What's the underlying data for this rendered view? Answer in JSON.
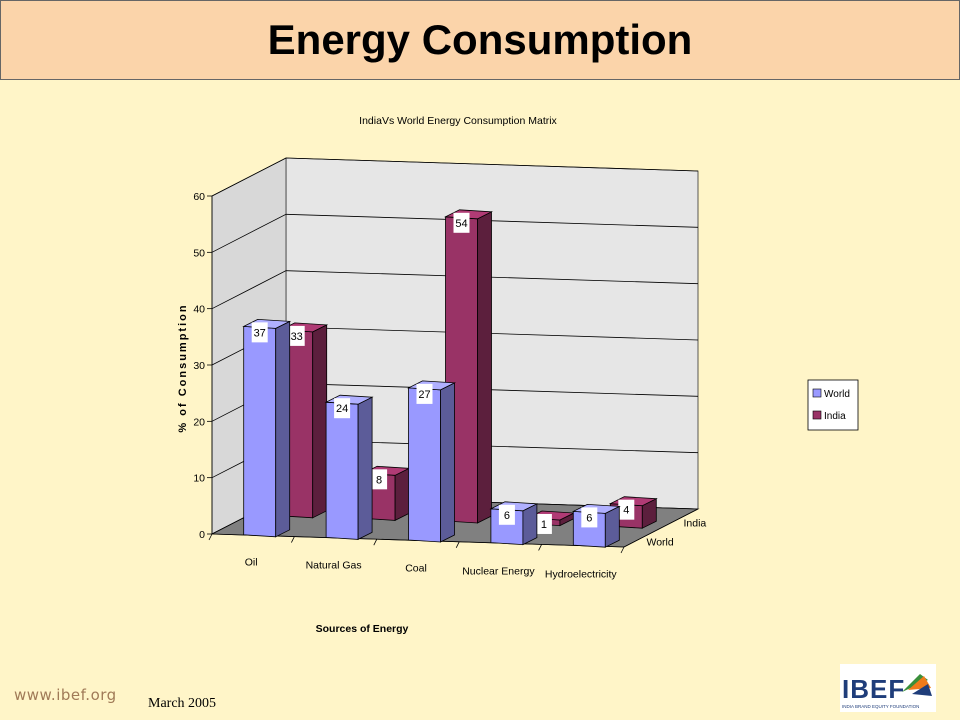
{
  "page": {
    "title": "Energy Consumption",
    "footer_url": "www.ibef.org",
    "footer_date": "March 2005",
    "logo_text": "IBEF",
    "logo_subtext": "INDIA BRAND EQUITY FOUNDATION"
  },
  "colors": {
    "background": "#fff5c8",
    "title_bar": "#fbd4aa",
    "world": "#9999ff",
    "india": "#993366",
    "floor": "#808080",
    "wall": "#e6e6e6"
  },
  "chart_data": {
    "type": "bar",
    "title": "IndiaVs World Energy Consumption Matrix",
    "xlabel": "Sources of Energy",
    "ylabel": "% of Consumption",
    "categories": [
      "Oil",
      "Natural Gas",
      "Coal",
      "Nuclear Energy",
      "Hydroelectricity"
    ],
    "series": [
      {
        "name": "World",
        "values": [
          37,
          24,
          27,
          6,
          6
        ]
      },
      {
        "name": "India",
        "values": [
          33,
          8,
          54,
          1,
          4
        ]
      }
    ],
    "ylim": [
      0,
      60
    ],
    "yticks": [
      0,
      10,
      20,
      30,
      40,
      50,
      60
    ],
    "depth_labels": [
      "World",
      "India"
    ],
    "legend": [
      "World",
      "India"
    ],
    "legend_position": "right",
    "grid": true,
    "style": "3d-column"
  }
}
